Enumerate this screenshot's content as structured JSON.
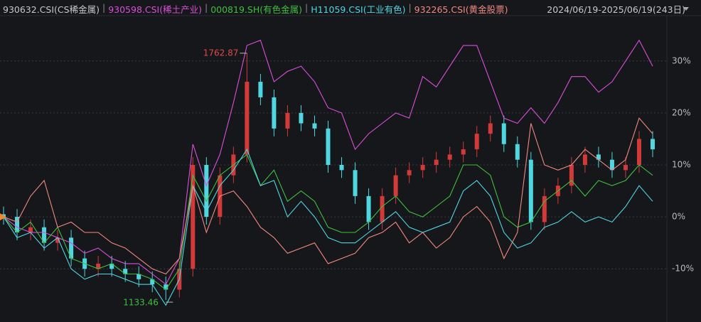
{
  "chart_data": {
    "type": "line",
    "legend_separator": "|",
    "date_range": "2024/06/19-2025/06/19(243日)",
    "ylim": [
      -19,
      39
    ],
    "yticks": [
      {
        "value": 30,
        "label": "30%"
      },
      {
        "value": 20,
        "label": "20%"
      },
      {
        "value": 10,
        "label": "10%"
      },
      {
        "value": 0,
        "label": "0%"
      },
      {
        "value": -10,
        "label": "-10%"
      }
    ],
    "grid": true,
    "candles": {
      "name": "930632.CSI(CS稀金属)",
      "color": "#c8c8c8",
      "up_color": "#d23a3a",
      "down_color": "#4fd6e0",
      "max_label": "1762.87",
      "max_label_color": "#e04848",
      "min_label": "1133.46",
      "min_label_color": "#3fbf3f",
      "open": [
        0.5,
        0,
        -3,
        -2,
        -5,
        -4,
        -8,
        -10,
        -9,
        -10,
        -11,
        -12,
        -13,
        -14,
        -10,
        10,
        0,
        8,
        12,
        26,
        23,
        17,
        20,
        18,
        17,
        10,
        9,
        4,
        -1,
        4,
        8,
        9,
        10,
        11,
        12,
        13,
        16,
        18,
        14,
        11,
        -1,
        4,
        6,
        10,
        12,
        11,
        9,
        10,
        15
      ],
      "high": [
        2,
        1.5,
        -0.5,
        -0.5,
        -2.5,
        -2.5,
        -6.5,
        -7.5,
        -7.5,
        -8.5,
        -9.5,
        -10.5,
        -11.5,
        -8.5,
        11.5,
        11.5,
        9.5,
        13.5,
        31.5,
        27.5,
        24.5,
        21.5,
        21.5,
        19.5,
        18.5,
        11.5,
        10.5,
        5.5,
        5.5,
        9.5,
        10.5,
        11.5,
        12.5,
        13.5,
        14.5,
        17.5,
        19.5,
        19.5,
        15.5,
        12.5,
        5.5,
        7.5,
        11.5,
        13.5,
        13.5,
        12.5,
        11.5,
        16.5,
        16.5
      ],
      "low": [
        -1.5,
        -4.5,
        -4.5,
        -6.5,
        -6.5,
        -9.5,
        -11.5,
        -11.5,
        -11.5,
        -12.5,
        -13.5,
        -14.5,
        -16,
        -15.5,
        -11.5,
        -1.5,
        -1.5,
        6.5,
        10.5,
        21.5,
        15.5,
        15.5,
        16.5,
        15.5,
        8.5,
        7.5,
        2.5,
        -2.5,
        -2.5,
        2.5,
        6.5,
        7.5,
        8.5,
        9.5,
        10.5,
        11.5,
        14.5,
        12.5,
        9.5,
        -2.5,
        -2.5,
        2.5,
        4.5,
        8.5,
        9.5,
        7.5,
        7.5,
        8.5,
        11.5
      ],
      "close": [
        0,
        -3,
        -2,
        -5,
        -4,
        -8,
        -10,
        -9,
        -10,
        -11,
        -12,
        -13,
        -14,
        -10,
        10,
        0,
        8,
        12,
        26,
        23,
        17,
        20,
        18,
        17,
        10,
        9,
        4,
        -1,
        4,
        8,
        9,
        10,
        11,
        12,
        13,
        16,
        18,
        14,
        11,
        -1,
        4,
        6,
        10,
        12,
        11,
        9,
        10,
        15,
        13
      ]
    },
    "series": [
      {
        "name": "930598.CSI(稀土产业)",
        "color": "#d94fd9",
        "values": [
          0,
          -2,
          -3,
          -3,
          -4,
          -5,
          -7,
          -6,
          -8,
          -9,
          -9,
          -11,
          -13,
          -8,
          14,
          6,
          12,
          22,
          33,
          34,
          26,
          28,
          29,
          26,
          21,
          20,
          13,
          16,
          18,
          20,
          19,
          27,
          25,
          29,
          33,
          33,
          26,
          19,
          18,
          21,
          18,
          22,
          27,
          27,
          24,
          26,
          30,
          34,
          29
        ]
      },
      {
        "name": "000819.SH(有色金属)",
        "color": "#3fbf3f",
        "values": [
          0,
          -3,
          -1,
          -5,
          -2,
          -8,
          -9,
          -10,
          -9,
          -11,
          -11,
          -12,
          -14,
          -10,
          8,
          3,
          8,
          10,
          12,
          6,
          9,
          3,
          5,
          3,
          -2,
          -3,
          -3,
          -1,
          2,
          4,
          1,
          0,
          2,
          4,
          10,
          10,
          8,
          0,
          -2,
          -1,
          3,
          5,
          7,
          4,
          7,
          6,
          7,
          10,
          8
        ]
      },
      {
        "name": "H11059.CSI(工业有色)",
        "color": "#4fd6e0",
        "values": [
          0,
          -4,
          -3,
          -6,
          -4,
          -10,
          -12,
          -11,
          -11,
          -12,
          -13,
          -13,
          -17,
          -12,
          6,
          1,
          6,
          9,
          13,
          6,
          7,
          0,
          3,
          0,
          -4,
          -5,
          -5,
          -3,
          -1,
          1,
          -2,
          -3,
          -2,
          -1,
          5,
          7,
          4,
          -3,
          -6,
          -5,
          -2,
          -1,
          1,
          -1,
          0,
          -1,
          2,
          6,
          3
        ]
      },
      {
        "name": "932265.CSI(黄金股票)",
        "color": "#f08a80",
        "values": [
          0,
          -1,
          4,
          7,
          -2,
          -1,
          -3,
          -3,
          -5,
          -6,
          -8,
          -10,
          -11,
          -8,
          6,
          -3,
          4,
          5,
          2,
          -2,
          -4,
          -7,
          -6,
          -5,
          -9,
          -8,
          -7,
          -4,
          -3,
          -1,
          -5,
          -3,
          -6,
          -4,
          0,
          2,
          -1,
          -8,
          -3,
          18,
          10,
          9,
          10,
          13,
          11,
          9,
          11,
          19,
          16
        ]
      }
    ]
  }
}
